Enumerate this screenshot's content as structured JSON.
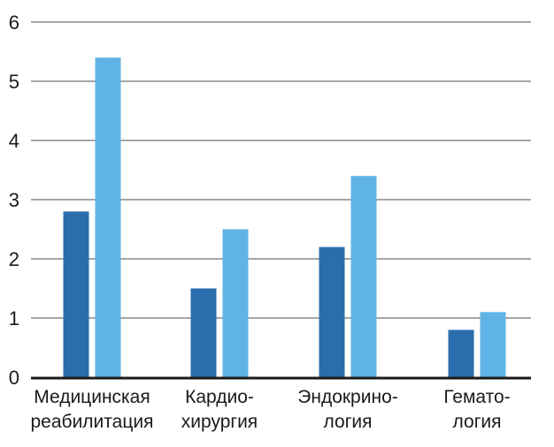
{
  "chart_data": {
    "type": "bar",
    "title": "",
    "xlabel": "",
    "ylabel": "",
    "ylim": [
      0,
      6
    ],
    "yticks": [
      0,
      1,
      2,
      3,
      4,
      5,
      6
    ],
    "grid": true,
    "legend": "none",
    "categories": [
      [
        "Медицинская",
        "реабилитация"
      ],
      [
        "Кардио-",
        "хирургия"
      ],
      [
        "Эндокрино-",
        "логия"
      ],
      [
        "Гемато-",
        "логия"
      ]
    ],
    "series": [
      {
        "values": [
          2.8,
          1.5,
          2.2,
          0.8
        ],
        "color": "#2a6ead"
      },
      {
        "values": [
          5.4,
          2.5,
          3.4,
          1.1
        ],
        "color": "#5fb3e6"
      }
    ],
    "colors": {
      "grid": "#a6a6a6",
      "axis": "#1a1a1a"
    }
  }
}
